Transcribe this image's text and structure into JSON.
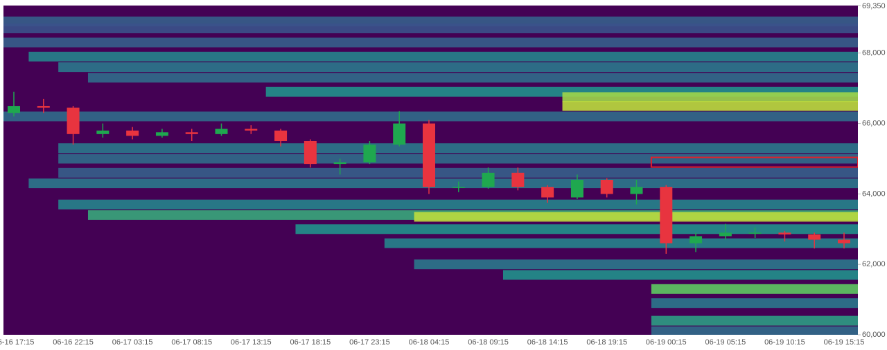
{
  "chart_data": {
    "type": "heatmap-candlestick",
    "categories": [
      "06-16 17:15",
      null,
      "06-16 22:15",
      null,
      "06-17 03:15",
      null,
      "06-17 08:15",
      null,
      "06-17 13:15",
      null,
      "06-17 18:15",
      null,
      "06-17 23:15",
      null,
      "06-18 04:15",
      null,
      "06-18 09:15",
      null,
      "06-18 14:15",
      null,
      "06-18 19:15",
      null,
      "06-19 00:15",
      null,
      "06-19 05:15",
      null,
      "06-19 10:15",
      null,
      "06-19 15:15"
    ],
    "open": [
      66300,
      66500,
      66450,
      65700,
      65800,
      65650,
      65750,
      65700,
      65850,
      65800,
      65500,
      64850,
      64900,
      65400,
      66000,
      64200,
      64200,
      64600,
      64200,
      63900,
      64400,
      64000,
      64200,
      62600,
      62800,
      62900,
      62900,
      62850,
      62700
    ],
    "high": [
      66900,
      66700,
      66500,
      66000,
      65900,
      65850,
      65850,
      66000,
      65950,
      65850,
      65550,
      65000,
      65500,
      66350,
      66100,
      64350,
      64750,
      64750,
      64250,
      64550,
      64450,
      64400,
      64250,
      62900,
      63150,
      63050,
      62950,
      62900,
      62900
    ],
    "low": [
      66200,
      66300,
      65400,
      65600,
      65550,
      65600,
      65500,
      65650,
      65700,
      65350,
      64750,
      64550,
      64850,
      65350,
      64000,
      64050,
      64150,
      64100,
      63750,
      63850,
      63900,
      63700,
      62300,
      62350,
      62700,
      62750,
      62650,
      62450,
      62450
    ],
    "close": [
      66500,
      66450,
      65700,
      65800,
      65650,
      65750,
      65700,
      65850,
      65800,
      65500,
      64850,
      64900,
      65400,
      66000,
      64200,
      64200,
      64600,
      64200,
      63900,
      64400,
      64000,
      64200,
      62600,
      62800,
      62900,
      62900,
      62850,
      62700,
      62600
    ],
    "up_color": "#1fa84f",
    "down_color": "#e8343f",
    "heatmap": [
      {
        "price": 68900,
        "start": 0,
        "intensity": 0.3
      },
      {
        "price": 68700,
        "start": 0,
        "intensity": 0.25
      },
      {
        "price": 68300,
        "start": 0,
        "intensity": 0.3
      },
      {
        "price": 67900,
        "start": 1,
        "intensity": 0.45
      },
      {
        "price": 67600,
        "start": 2,
        "intensity": 0.4
      },
      {
        "price": 67300,
        "start": 3,
        "intensity": 0.35
      },
      {
        "price": 66900,
        "start": 9,
        "intensity": 0.5
      },
      {
        "price": 66750,
        "start": 19,
        "intensity": 0.85
      },
      {
        "price": 66500,
        "start": 19,
        "intensity": 0.9
      },
      {
        "price": 66200,
        "start": 0,
        "intensity": 0.35
      },
      {
        "price": 65300,
        "start": 2,
        "intensity": 0.4
      },
      {
        "price": 65000,
        "start": 2,
        "intensity": 0.35
      },
      {
        "price": 64600,
        "start": 2,
        "intensity": 0.3
      },
      {
        "price": 64300,
        "start": 1,
        "intensity": 0.4
      },
      {
        "price": 63700,
        "start": 2,
        "intensity": 0.45
      },
      {
        "price": 63400,
        "start": 3,
        "intensity": 0.6
      },
      {
        "price": 63350,
        "start": 14,
        "intensity": 0.9
      },
      {
        "price": 63000,
        "start": 10,
        "intensity": 0.5
      },
      {
        "price": 62600,
        "start": 13,
        "intensity": 0.45
      },
      {
        "price": 62000,
        "start": 14,
        "intensity": 0.4
      },
      {
        "price": 61700,
        "start": 17,
        "intensity": 0.5
      },
      {
        "price": 61300,
        "start": 22,
        "intensity": 0.75
      },
      {
        "price": 60900,
        "start": 22,
        "intensity": 0.4
      },
      {
        "price": 60400,
        "start": 22,
        "intensity": 0.55
      },
      {
        "price": 60100,
        "start": 22,
        "intensity": 0.35
      }
    ],
    "highlight": {
      "price": 64900,
      "start": 22,
      "color": "#e0202a"
    },
    "background": "#440154",
    "ylim": [
      60000,
      69350
    ],
    "yticks": [
      {
        "value": 60000,
        "label": "60,000"
      },
      {
        "value": 62000,
        "label": "62,000"
      },
      {
        "value": 64000,
        "label": "64,000"
      },
      {
        "value": 66000,
        "label": "66,000"
      },
      {
        "value": 68000,
        "label": "68,000"
      },
      {
        "value": 69350,
        "label": "69,350"
      }
    ]
  }
}
